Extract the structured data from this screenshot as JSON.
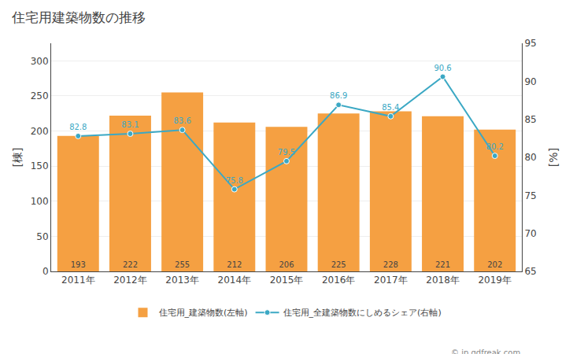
{
  "chart_data": {
    "type": "bar",
    "title": "住宅用建築物数の推移",
    "categories": [
      "2011年",
      "2012年",
      "2013年",
      "2014年",
      "2015年",
      "2016年",
      "2017年",
      "2018年",
      "2019年"
    ],
    "series": [
      {
        "name": "住宅用_建築物数(左軸)",
        "type": "bar",
        "color": "#f5a042",
        "values": [
          193,
          222,
          255,
          212,
          206,
          225,
          228,
          221,
          202
        ],
        "data_labels": true
      },
      {
        "name": "住宅用_全建築物数にしめるシェア(右軸)",
        "type": "line",
        "axis": "y2",
        "color": "#3ba8c4",
        "marker": "circle",
        "values": [
          82.8,
          83.1,
          83.6,
          75.8,
          79.5,
          86.9,
          85.4,
          90.6,
          80.2
        ],
        "data_labels": true
      }
    ],
    "ylabel": "[棟]",
    "y2label": "[%]",
    "ylim": [
      0,
      325
    ],
    "yticks": [
      0,
      50,
      100,
      150,
      200,
      250,
      300
    ],
    "y2lim": [
      65,
      95
    ],
    "y2ticks": [
      65,
      70,
      75,
      80,
      85,
      90,
      95
    ],
    "grid": true,
    "legend": "bottom",
    "annotations": [
      "© jp.gdfreak.com"
    ]
  }
}
